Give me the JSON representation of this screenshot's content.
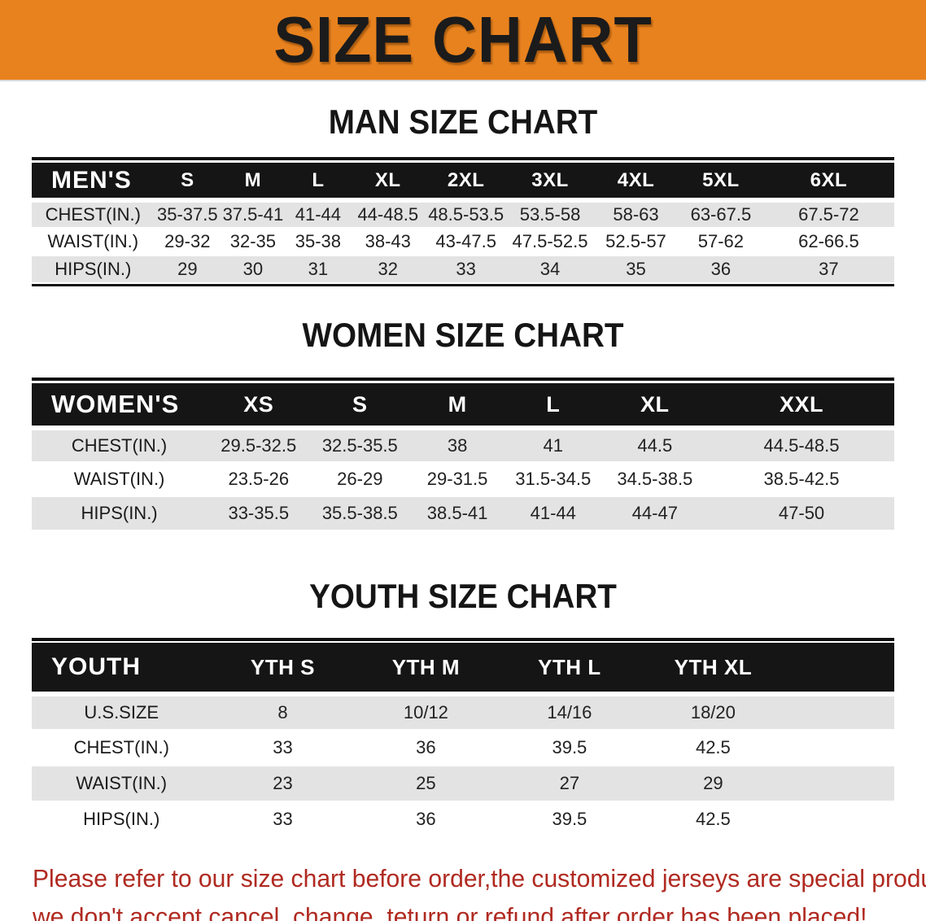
{
  "banner": {
    "title": "SIZE CHART",
    "bg_color": "#E8821E"
  },
  "colors": {
    "header_bar": "#151515",
    "stripe_gray": "#E3E3E3",
    "notice_red": "#B02A21"
  },
  "sections": [
    {
      "id": "men",
      "heading": "MAN SIZE CHART",
      "table": {
        "header_label": "MEN'S",
        "columns": [
          "S",
          "M",
          "L",
          "XL",
          "2XL",
          "3XL",
          "4XL",
          "5XL",
          "6XL"
        ],
        "rows": [
          {
            "label": "CHEST(IN.)",
            "values": [
              "35-37.5",
              "37.5-41",
              "41-44",
              "44-48.5",
              "48.5-53.5",
              "53.5-58",
              "58-63",
              "63-67.5",
              "67.5-72"
            ]
          },
          {
            "label": "WAIST(IN.)",
            "values": [
              "29-32",
              "32-35",
              "35-38",
              "38-43",
              "43-47.5",
              "47.5-52.5",
              "52.5-57",
              "57-62",
              "62-66.5"
            ]
          },
          {
            "label": "HIPS(IN.)",
            "values": [
              "29",
              "30",
              "31",
              "32",
              "33",
              "34",
              "35",
              "36",
              "37"
            ]
          }
        ]
      }
    },
    {
      "id": "women",
      "heading": "WOMEN SIZE CHART",
      "table": {
        "header_label": "WOMEN'S",
        "columns": [
          "XS",
          "S",
          "M",
          "L",
          "XL",
          "XXL"
        ],
        "rows": [
          {
            "label": "CHEST(IN.)",
            "values": [
              "29.5-32.5",
              "32.5-35.5",
              "38",
              "41",
              "44.5",
              "44.5-48.5"
            ]
          },
          {
            "label": "WAIST(IN.)",
            "values": [
              "23.5-26",
              "26-29",
              "29-31.5",
              "31.5-34.5",
              "34.5-38.5",
              "38.5-42.5"
            ]
          },
          {
            "label": "HIPS(IN.)",
            "values": [
              "33-35.5",
              "35.5-38.5",
              "38.5-41",
              "41-44",
              "44-47",
              "47-50"
            ]
          }
        ]
      }
    },
    {
      "id": "youth",
      "heading": "YOUTH SIZE CHART",
      "table": {
        "header_label": "YOUTH",
        "columns": [
          "YTH S",
          "YTH M",
          "YTH L",
          "YTH XL"
        ],
        "rows": [
          {
            "label": "U.S.SIZE",
            "values": [
              "8",
              "10/12",
              "14/16",
              "18/20"
            ]
          },
          {
            "label": "CHEST(IN.)",
            "values": [
              "33",
              "36",
              "39.5",
              "42.5"
            ]
          },
          {
            "label": "WAIST(IN.)",
            "values": [
              "23",
              "25",
              "27",
              "29"
            ]
          },
          {
            "label": "HIPS(IN.)",
            "values": [
              "33",
              "36",
              "39.5",
              "42.5"
            ]
          }
        ]
      }
    }
  ],
  "footer": {
    "line1": "Please refer to our size chart before order,the customized jerseys are special products,",
    "line2": "we don't accept cancel, change, teturn or refund after order has been placed!"
  }
}
